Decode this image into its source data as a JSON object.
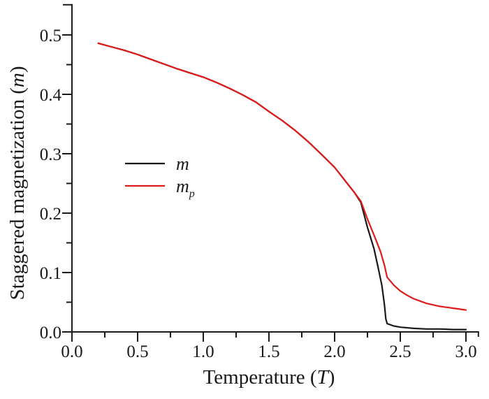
{
  "figure": {
    "background": "#ffffff",
    "axis_color": "#1a1a1a"
  },
  "chart_data": {
    "type": "line",
    "title": "",
    "xlabel": "Temperature (T)",
    "ylabel": "Staggered magnetization (m)",
    "xlabel_parts": {
      "prefix": "Temperature (",
      "symbol": "T",
      "suffix": ")"
    },
    "ylabel_parts": {
      "prefix": "Staggered magnetization (",
      "symbol": "m",
      "suffix": ")"
    },
    "xlim": [
      0.0,
      3.1
    ],
    "ylim": [
      0.0,
      0.552
    ],
    "grid": false,
    "x_ticks": {
      "values": [
        0.0,
        0.5,
        1.0,
        1.5,
        2.0,
        2.5,
        3.0
      ],
      "labels": [
        "0.0",
        "0.5",
        "1.0",
        "1.5",
        "2.0",
        "2.5",
        "3.0"
      ],
      "minor": [
        0.25,
        0.75,
        1.25,
        1.75,
        2.25,
        2.75
      ]
    },
    "y_ticks": {
      "values": [
        0.0,
        0.1,
        0.2,
        0.3,
        0.4,
        0.5
      ],
      "labels": [
        "0.0",
        "0.1",
        "0.2",
        "0.3",
        "0.4",
        "0.5"
      ],
      "minor": [
        0.05,
        0.15,
        0.25,
        0.35,
        0.45
      ]
    },
    "legend": {
      "position": "inside-left-middle",
      "entries": [
        {
          "label": "m",
          "sub": "",
          "color": "#1a1a1a"
        },
        {
          "label": "m",
          "sub": "p",
          "color": "#e01b1b"
        }
      ]
    },
    "series": [
      {
        "name": "m",
        "color": "#1a1a1a",
        "x": [
          0.2,
          0.3,
          0.4,
          0.5,
          0.6,
          0.7,
          0.8,
          0.9,
          1.0,
          1.1,
          1.2,
          1.3,
          1.4,
          1.5,
          1.6,
          1.7,
          1.8,
          1.9,
          2.0,
          2.1,
          2.15,
          2.2,
          2.25,
          2.3,
          2.33,
          2.36,
          2.38,
          2.39,
          2.4,
          2.45,
          2.5,
          2.6,
          2.7,
          2.8,
          2.9,
          3.0
        ],
        "y": [
          0.486,
          0.48,
          0.474,
          0.467,
          0.459,
          0.451,
          0.443,
          0.436,
          0.429,
          0.42,
          0.41,
          0.399,
          0.387,
          0.371,
          0.356,
          0.339,
          0.32,
          0.299,
          0.277,
          0.249,
          0.235,
          0.218,
          0.176,
          0.14,
          0.11,
          0.078,
          0.045,
          0.022,
          0.014,
          0.01,
          0.008,
          0.006,
          0.005,
          0.005,
          0.004,
          0.004
        ]
      },
      {
        "name": "m_p",
        "color": "#e01b1b",
        "x": [
          0.2,
          0.3,
          0.4,
          0.5,
          0.6,
          0.7,
          0.8,
          0.9,
          1.0,
          1.1,
          1.2,
          1.3,
          1.4,
          1.5,
          1.6,
          1.7,
          1.8,
          1.9,
          2.0,
          2.1,
          2.15,
          2.2,
          2.25,
          2.3,
          2.35,
          2.38,
          2.4,
          2.45,
          2.5,
          2.55,
          2.6,
          2.7,
          2.8,
          2.9,
          3.0
        ],
        "y": [
          0.486,
          0.48,
          0.474,
          0.467,
          0.459,
          0.451,
          0.443,
          0.436,
          0.429,
          0.42,
          0.41,
          0.399,
          0.387,
          0.371,
          0.356,
          0.339,
          0.32,
          0.299,
          0.277,
          0.249,
          0.235,
          0.22,
          0.19,
          0.163,
          0.135,
          0.112,
          0.092,
          0.079,
          0.069,
          0.062,
          0.056,
          0.048,
          0.043,
          0.04,
          0.037
        ]
      }
    ]
  }
}
